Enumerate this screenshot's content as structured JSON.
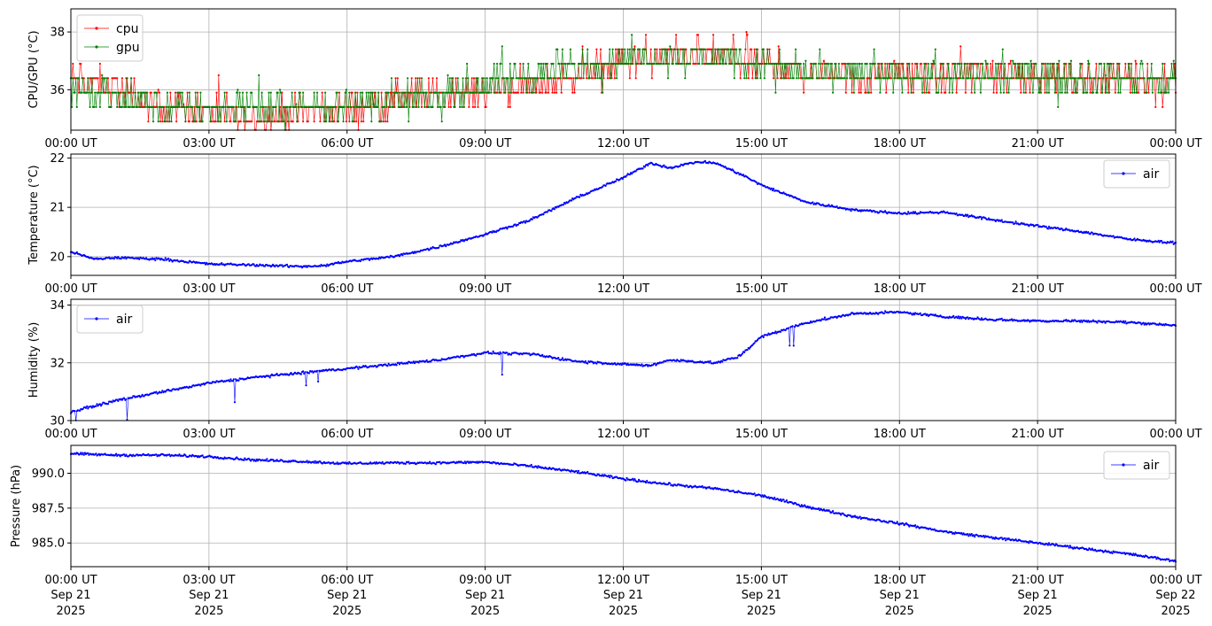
{
  "chart_data": [
    {
      "type": "line",
      "ylabel": "CPU/GPU (°C)",
      "ylim": [
        34.6,
        38.8
      ],
      "yticks": [
        36,
        38
      ],
      "ytick_labels": [
        "36",
        "38"
      ],
      "xlim": [
        "2025-09-21T00:00",
        "2025-09-22T00:00"
      ],
      "grid": true,
      "legend_placement": "top-left",
      "series": [
        {
          "name": "cpu",
          "color": "#ff0000",
          "anchors": [
            [
              0,
              36.4
            ],
            [
              1,
              36.0
            ],
            [
              2,
              35.4
            ],
            [
              3,
              35.2
            ],
            [
              4,
              35.0
            ],
            [
              5,
              35.2
            ],
            [
              6,
              35.3
            ],
            [
              7,
              35.6
            ],
            [
              8,
              35.8
            ],
            [
              9,
              36.0
            ],
            [
              10,
              36.2
            ],
            [
              11,
              36.5
            ],
            [
              12,
              37.0
            ],
            [
              13,
              37.2
            ],
            [
              14,
              37.2
            ],
            [
              15,
              36.9
            ],
            [
              16,
              36.6
            ],
            [
              17,
              36.5
            ],
            [
              18,
              36.5
            ],
            [
              19,
              36.5
            ],
            [
              20,
              36.5
            ],
            [
              21,
              36.5
            ],
            [
              22,
              36.4
            ],
            [
              23,
              36.4
            ],
            [
              24,
              36.3
            ]
          ]
        },
        {
          "name": "gpu",
          "color": "#008000",
          "anchors": [
            [
              0,
              36.0
            ],
            [
              1,
              35.8
            ],
            [
              2,
              35.4
            ],
            [
              3,
              35.4
            ],
            [
              4,
              35.4
            ],
            [
              5,
              35.4
            ],
            [
              6,
              35.5
            ],
            [
              7,
              35.6
            ],
            [
              8,
              35.7
            ],
            [
              9,
              36.3
            ],
            [
              10,
              36.5
            ],
            [
              11,
              36.8
            ],
            [
              12,
              37.1
            ],
            [
              13,
              37.2
            ],
            [
              14,
              37.2
            ],
            [
              15,
              36.9
            ],
            [
              16,
              36.6
            ],
            [
              17,
              36.5
            ],
            [
              18,
              36.5
            ],
            [
              19,
              36.5
            ],
            [
              20,
              36.5
            ],
            [
              21,
              36.5
            ],
            [
              22,
              36.5
            ],
            [
              23,
              36.4
            ],
            [
              24,
              36.3
            ]
          ]
        }
      ]
    },
    {
      "type": "line",
      "ylabel": "Temperature (°C)",
      "ylim": [
        19.62,
        22.08
      ],
      "yticks": [
        20,
        21,
        22
      ],
      "ytick_labels": [
        "20",
        "21",
        "22"
      ],
      "xlim": [
        "2025-09-21T00:00",
        "2025-09-22T00:00"
      ],
      "grid": true,
      "legend_placement": "top-right",
      "series": [
        {
          "name": "air",
          "color": "#0000ff",
          "anchors": [
            [
              0,
              20.1
            ],
            [
              0.5,
              19.95
            ],
            [
              1,
              19.98
            ],
            [
              2,
              19.95
            ],
            [
              3,
              19.85
            ],
            [
              4,
              19.83
            ],
            [
              5,
              19.8
            ],
            [
              5.5,
              19.82
            ],
            [
              6,
              19.9
            ],
            [
              7,
              20.0
            ],
            [
              8,
              20.2
            ],
            [
              9,
              20.45
            ],
            [
              10,
              20.75
            ],
            [
              11,
              21.2
            ],
            [
              12,
              21.6
            ],
            [
              12.6,
              21.9
            ],
            [
              13,
              21.8
            ],
            [
              13.6,
              21.92
            ],
            [
              14,
              21.9
            ],
            [
              14.6,
              21.65
            ],
            [
              15,
              21.45
            ],
            [
              16,
              21.1
            ],
            [
              17,
              20.95
            ],
            [
              18,
              20.88
            ],
            [
              19,
              20.9
            ],
            [
              20,
              20.75
            ],
            [
              21,
              20.62
            ],
            [
              22,
              20.5
            ],
            [
              23,
              20.35
            ],
            [
              24,
              20.28
            ]
          ]
        }
      ]
    },
    {
      "type": "line",
      "ylabel": "Humidity (%)",
      "ylim": [
        30.0,
        34.2
      ],
      "yticks": [
        30,
        32,
        34
      ],
      "ytick_labels": [
        "30",
        "32",
        "34"
      ],
      "xlim": [
        "2025-09-21T00:00",
        "2025-09-22T00:00"
      ],
      "grid": true,
      "legend_placement": "top-left",
      "series": [
        {
          "name": "air",
          "color": "#0000ff",
          "anchors": [
            [
              0,
              30.3
            ],
            [
              1,
              30.7
            ],
            [
              2,
              31.0
            ],
            [
              3,
              31.3
            ],
            [
              4,
              31.5
            ],
            [
              5,
              31.65
            ],
            [
              6,
              31.8
            ],
            [
              7,
              31.95
            ],
            [
              8,
              32.1
            ],
            [
              9,
              32.35
            ],
            [
              10,
              32.3
            ],
            [
              11,
              32.05
            ],
            [
              12,
              31.95
            ],
            [
              12.6,
              31.9
            ],
            [
              13,
              32.1
            ],
            [
              14,
              32.0
            ],
            [
              14.5,
              32.2
            ],
            [
              15,
              32.9
            ],
            [
              16,
              33.4
            ],
            [
              17,
              33.7
            ],
            [
              18,
              33.75
            ],
            [
              19,
              33.6
            ],
            [
              20,
              33.5
            ],
            [
              21,
              33.45
            ],
            [
              22,
              33.45
            ],
            [
              23,
              33.4
            ],
            [
              24,
              33.3
            ]
          ]
        }
      ]
    },
    {
      "type": "line",
      "ylabel": "Pressure (hPa)",
      "ylim": [
        983.3,
        992.0
      ],
      "yticks": [
        985.0,
        987.5,
        990.0
      ],
      "ytick_labels": [
        "985.0",
        "987.5",
        "990.0"
      ],
      "xlim": [
        "2025-09-21T00:00",
        "2025-09-22T00:00"
      ],
      "grid": true,
      "legend_placement": "top-right",
      "series": [
        {
          "name": "air",
          "color": "#0000ff",
          "anchors": [
            [
              0,
              991.4
            ],
            [
              1,
              991.3
            ],
            [
              2,
              991.3
            ],
            [
              3,
              991.2
            ],
            [
              4,
              990.95
            ],
            [
              5,
              990.85
            ],
            [
              6,
              990.7
            ],
            [
              7,
              990.75
            ],
            [
              8,
              990.75
            ],
            [
              9,
              990.8
            ],
            [
              10,
              990.5
            ],
            [
              11,
              990.1
            ],
            [
              12,
              989.6
            ],
            [
              13,
              989.2
            ],
            [
              14,
              988.9
            ],
            [
              15,
              988.4
            ],
            [
              16,
              987.6
            ],
            [
              17,
              986.9
            ],
            [
              18,
              986.4
            ],
            [
              19,
              985.8
            ],
            [
              20,
              985.4
            ],
            [
              21,
              985.0
            ],
            [
              22,
              984.6
            ],
            [
              23,
              984.2
            ],
            [
              24,
              983.7
            ]
          ]
        }
      ]
    }
  ],
  "x_axis": {
    "tick_labels": [
      "00:00 UT",
      "03:00 UT",
      "06:00 UT",
      "09:00 UT",
      "12:00 UT",
      "15:00 UT",
      "18:00 UT",
      "21:00 UT",
      "00:00 UT"
    ],
    "bottom_dates": [
      "Sep 21",
      "Sep 21",
      "Sep 21",
      "Sep 21",
      "Sep 21",
      "Sep 21",
      "Sep 21",
      "Sep 21",
      "Sep 22"
    ],
    "bottom_years": [
      "2025",
      "2025",
      "2025",
      "2025",
      "2025",
      "2025",
      "2025",
      "2025",
      "2025"
    ]
  }
}
